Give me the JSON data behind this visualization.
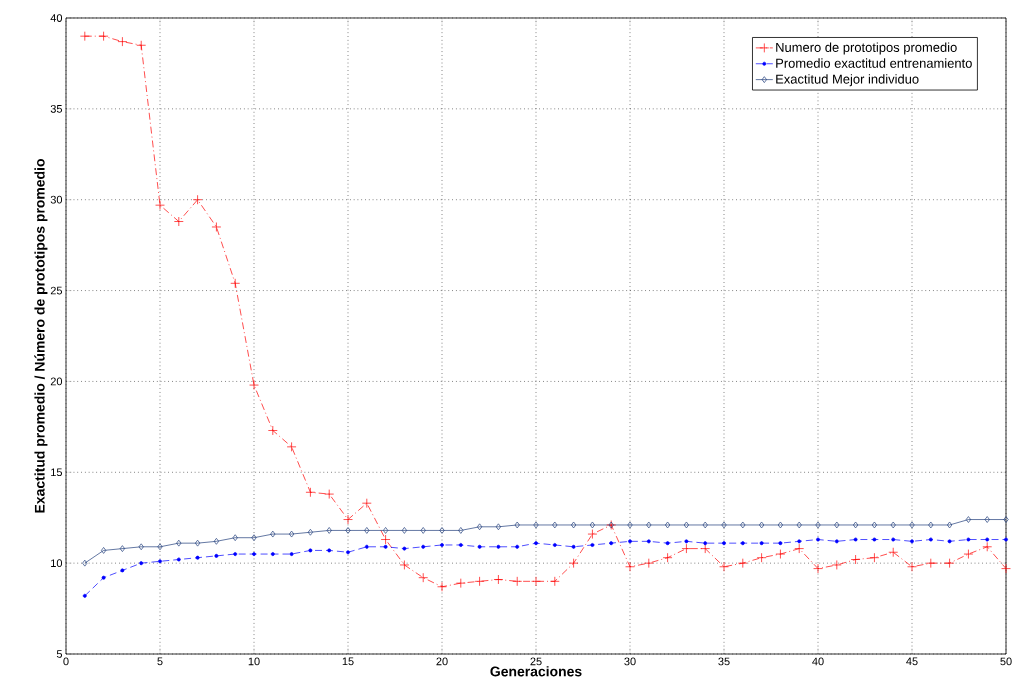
{
  "chart_data": {
    "type": "line",
    "xlabel": "Generaciones",
    "ylabel": "Exactitud promedio / Número de prototipos promedio",
    "x": [
      1,
      2,
      3,
      4,
      5,
      6,
      7,
      8,
      9,
      10,
      11,
      12,
      13,
      14,
      15,
      16,
      17,
      18,
      19,
      20,
      21,
      22,
      23,
      24,
      25,
      26,
      27,
      28,
      29,
      30,
      31,
      32,
      33,
      34,
      35,
      36,
      37,
      38,
      39,
      40,
      41,
      42,
      43,
      44,
      45,
      46,
      47,
      48,
      49,
      50
    ],
    "series": [
      {
        "name": "Numero de prototipos promedio",
        "color": "#ff0000",
        "marker": "cross",
        "line_style": "dashdot",
        "values": [
          39,
          39,
          38.7,
          38.5,
          29.7,
          28.8,
          30,
          28.5,
          25.4,
          19.8,
          17.3,
          16.4,
          13.9,
          13.8,
          12.4,
          13.3,
          11.3,
          9.9,
          9.2,
          8.7,
          8.9,
          9.0,
          9.1,
          9.0,
          9.0,
          9.0,
          10.0,
          11.6,
          12.1,
          9.8,
          10.0,
          10.3,
          10.8,
          10.8,
          9.8,
          10.0,
          10.3,
          10.5,
          10.8,
          9.7,
          9.9,
          10.2,
          10.3,
          10.6,
          9.8,
          10.0,
          10.0,
          10.5,
          10.9,
          9.7
        ]
      },
      {
        "name": "Promedio exactitud entrenamiento",
        "color": "#0000ff",
        "marker": "circle",
        "line_style": "dashed",
        "values": [
          8.2,
          9.2,
          9.6,
          10.0,
          10.1,
          10.2,
          10.3,
          10.4,
          10.5,
          10.5,
          10.5,
          10.5,
          10.7,
          10.7,
          10.6,
          10.9,
          10.9,
          10.8,
          10.9,
          11.0,
          11.0,
          10.9,
          10.9,
          10.9,
          11.1,
          11.0,
          10.9,
          11.0,
          11.1,
          11.2,
          11.2,
          11.1,
          11.2,
          11.1,
          11.1,
          11.1,
          11.1,
          11.1,
          11.2,
          11.3,
          11.2,
          11.3,
          11.3,
          11.3,
          11.2,
          11.3,
          11.2,
          11.3,
          11.3,
          11.3
        ]
      },
      {
        "name": "Exactitud Mejor individuo",
        "color": "#1f3d7a",
        "marker": "diamond",
        "line_style": "solid",
        "values": [
          10.0,
          10.7,
          10.8,
          10.9,
          10.9,
          11.1,
          11.1,
          11.2,
          11.4,
          11.4,
          11.6,
          11.6,
          11.7,
          11.8,
          11.8,
          11.8,
          11.8,
          11.8,
          11.8,
          11.8,
          11.8,
          12.0,
          12.0,
          12.1,
          12.1,
          12.1,
          12.1,
          12.1,
          12.1,
          12.1,
          12.1,
          12.1,
          12.1,
          12.1,
          12.1,
          12.1,
          12.1,
          12.1,
          12.1,
          12.1,
          12.1,
          12.1,
          12.1,
          12.1,
          12.1,
          12.1,
          12.1,
          12.4,
          12.4,
          12.4
        ]
      }
    ],
    "xlim": [
      0,
      50
    ],
    "ylim": [
      5,
      40
    ],
    "xticks": [
      0,
      5,
      10,
      15,
      20,
      25,
      30,
      35,
      40,
      45,
      50
    ],
    "yticks": [
      5,
      10,
      15,
      20,
      25,
      30,
      35,
      40
    ],
    "grid": true,
    "legend": "top right"
  }
}
